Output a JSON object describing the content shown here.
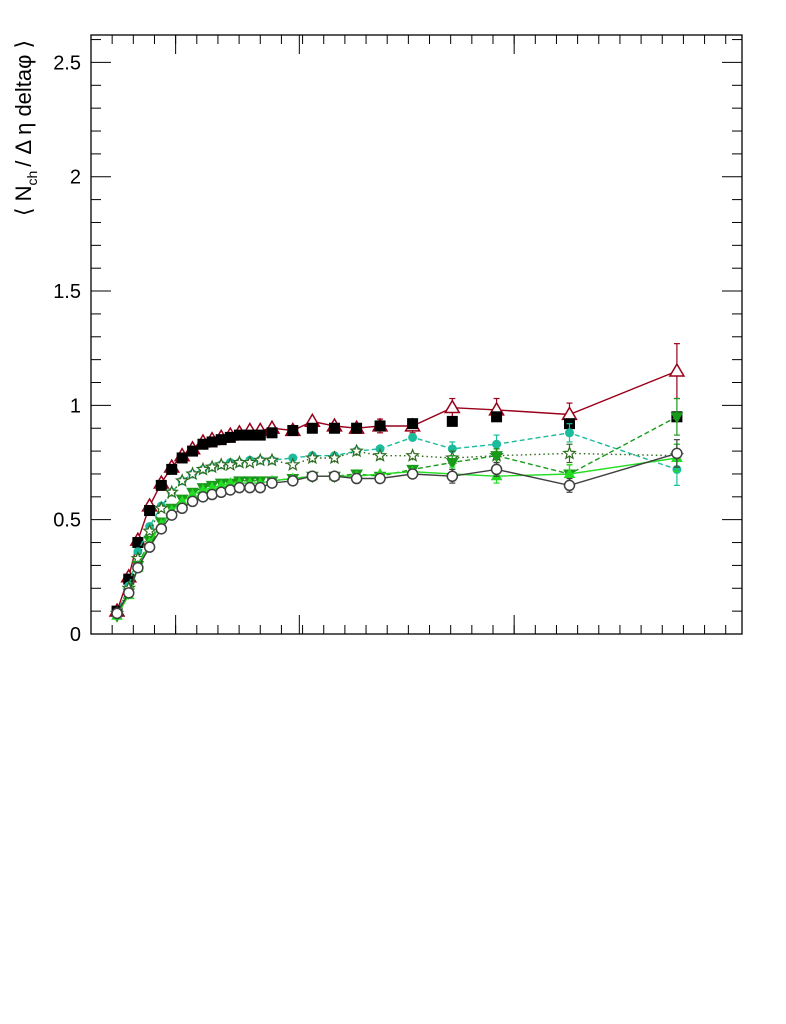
{
  "chart_data": {
    "type": "scatter",
    "ylabel_parts": {
      "open": "⟨ N",
      "sub": "ch",
      "rest": "/ Δ η deltaφ ⟩"
    },
    "ylim": [
      0,
      2.62
    ],
    "xlim": [
      0,
      100
    ],
    "y_ticks": [
      {
        "value": 0,
        "label": "0"
      },
      {
        "value": 0.5,
        "label": "0.5"
      },
      {
        "value": 1,
        "label": "1"
      },
      {
        "value": 1.5,
        "label": "1.5"
      },
      {
        "value": 2,
        "label": "2"
      },
      {
        "value": 2.5,
        "label": "2.5"
      }
    ],
    "x_major_ticks": [
      0,
      13,
      32,
      65,
      100
    ],
    "x_minor_step": 3.25,
    "y_minor_step": 0.1,
    "series": [
      {
        "marker": "open-triangle",
        "color": "#99001a",
        "line": "solid",
        "points": [
          [
            4,
            0.1
          ],
          [
            5.8,
            0.25
          ],
          [
            7.2,
            0.41
          ],
          [
            9,
            0.56
          ],
          [
            10.8,
            0.66
          ],
          [
            12.4,
            0.73
          ],
          [
            14,
            0.78
          ],
          [
            15.6,
            0.81
          ],
          [
            17.2,
            0.84
          ],
          [
            18.6,
            0.85
          ],
          [
            20,
            0.86
          ],
          [
            21.4,
            0.87
          ],
          [
            22.8,
            0.88
          ],
          [
            24.4,
            0.89
          ],
          [
            26,
            0.89
          ],
          [
            27.8,
            0.9
          ],
          [
            31,
            0.89
          ],
          [
            34,
            0.93
          ],
          [
            37.4,
            0.91
          ],
          [
            40.8,
            0.9
          ],
          [
            44.4,
            0.91
          ],
          [
            49.4,
            0.91
          ],
          [
            55.5,
            0.99
          ],
          [
            62.3,
            0.98
          ],
          [
            73.5,
            0.96
          ],
          [
            90,
            1.15
          ]
        ],
        "errors": [
          0.01,
          0.01,
          0.01,
          0.01,
          0.01,
          0.01,
          0.01,
          0.01,
          0.01,
          0.01,
          0.01,
          0.01,
          0.01,
          0.01,
          0.01,
          0.01,
          0.02,
          0.02,
          0.02,
          0.02,
          0.03,
          0.03,
          0.04,
          0.05,
          0.05,
          0.12
        ]
      },
      {
        "marker": "filled-square",
        "color": "#000000",
        "line": "none",
        "points": [
          [
            4,
            0.1
          ],
          [
            5.8,
            0.24
          ],
          [
            7.2,
            0.4
          ],
          [
            9,
            0.54
          ],
          [
            10.8,
            0.65
          ],
          [
            12.4,
            0.72
          ],
          [
            14,
            0.77
          ],
          [
            15.6,
            0.8
          ],
          [
            17.2,
            0.83
          ],
          [
            18.6,
            0.84
          ],
          [
            20,
            0.85
          ],
          [
            21.4,
            0.86
          ],
          [
            22.8,
            0.87
          ],
          [
            24.4,
            0.87
          ],
          [
            26,
            0.87
          ],
          [
            27.8,
            0.88
          ],
          [
            31,
            0.89
          ],
          [
            34,
            0.9
          ],
          [
            37.4,
            0.9
          ],
          [
            40.8,
            0.9
          ],
          [
            44.4,
            0.91
          ],
          [
            49.4,
            0.92
          ],
          [
            55.5,
            0.93
          ],
          [
            62.3,
            0.95
          ],
          [
            73.5,
            0.92
          ],
          [
            90,
            0.95
          ]
        ],
        "errors": [
          0.01,
          0.01,
          0.01,
          0.01,
          0.01,
          0.01,
          0.01,
          0.01,
          0.01,
          0.01,
          0.01,
          0.01,
          0.01,
          0.01,
          0.01,
          0.01,
          0.01,
          0.01,
          0.01,
          0.01,
          0.01,
          0.01,
          0.01,
          0.01,
          0.02,
          0.02
        ]
      },
      {
        "marker": "filled-circle",
        "color": "#1abc9c",
        "line": "dashed",
        "points": [
          [
            4,
            0.09
          ],
          [
            5.8,
            0.21
          ],
          [
            7.2,
            0.36
          ],
          [
            9,
            0.47
          ],
          [
            10.8,
            0.56
          ],
          [
            12.4,
            0.62
          ],
          [
            14,
            0.67
          ],
          [
            15.6,
            0.7
          ],
          [
            17.2,
            0.72
          ],
          [
            18.6,
            0.73
          ],
          [
            20,
            0.74
          ],
          [
            21.4,
            0.75
          ],
          [
            22.8,
            0.75
          ],
          [
            24.4,
            0.76
          ],
          [
            26,
            0.76
          ],
          [
            27.8,
            0.76
          ],
          [
            31,
            0.77
          ],
          [
            34,
            0.78
          ],
          [
            37.4,
            0.78
          ],
          [
            40.8,
            0.8
          ],
          [
            44.4,
            0.81
          ],
          [
            49.4,
            0.86
          ],
          [
            55.5,
            0.81
          ],
          [
            62.3,
            0.83
          ],
          [
            73.5,
            0.88
          ],
          [
            90,
            0.72
          ]
        ],
        "errors": [
          0.01,
          0.01,
          0.01,
          0.01,
          0.01,
          0.01,
          0.01,
          0.01,
          0.01,
          0.01,
          0.01,
          0.01,
          0.01,
          0.01,
          0.01,
          0.01,
          0.01,
          0.01,
          0.02,
          0.02,
          0.02,
          0.02,
          0.03,
          0.04,
          0.04,
          0.07
        ]
      },
      {
        "marker": "open-star",
        "color": "#2e6b1e",
        "line": "dotted",
        "points": [
          [
            4,
            0.09
          ],
          [
            5.8,
            0.2
          ],
          [
            7.2,
            0.33
          ],
          [
            9,
            0.45
          ],
          [
            10.8,
            0.55
          ],
          [
            12.4,
            0.62
          ],
          [
            14,
            0.67
          ],
          [
            15.6,
            0.7
          ],
          [
            17.2,
            0.72
          ],
          [
            18.6,
            0.73
          ],
          [
            20,
            0.74
          ],
          [
            21.4,
            0.74
          ],
          [
            22.8,
            0.75
          ],
          [
            24.4,
            0.75
          ],
          [
            26,
            0.76
          ],
          [
            27.8,
            0.76
          ],
          [
            31,
            0.74
          ],
          [
            34,
            0.77
          ],
          [
            37.4,
            0.77
          ],
          [
            40.8,
            0.8
          ],
          [
            44.4,
            0.78
          ],
          [
            49.4,
            0.78
          ],
          [
            55.5,
            0.77
          ],
          [
            62.3,
            0.78
          ],
          [
            73.5,
            0.79
          ],
          [
            90,
            0.78
          ]
        ],
        "errors": [
          0.01,
          0.01,
          0.01,
          0.01,
          0.01,
          0.01,
          0.01,
          0.01,
          0.01,
          0.01,
          0.01,
          0.01,
          0.01,
          0.01,
          0.01,
          0.01,
          0.01,
          0.02,
          0.02,
          0.02,
          0.02,
          0.02,
          0.03,
          0.03,
          0.04,
          0.05
        ]
      },
      {
        "marker": "filled-down-triangle",
        "color": "#1a9a1a",
        "line": "dashed",
        "points": [
          [
            4,
            0.08
          ],
          [
            5.8,
            0.18
          ],
          [
            7.2,
            0.3
          ],
          [
            9,
            0.41
          ],
          [
            10.8,
            0.49
          ],
          [
            12.4,
            0.55
          ],
          [
            14,
            0.59
          ],
          [
            15.6,
            0.62
          ],
          [
            17.2,
            0.64
          ],
          [
            18.6,
            0.65
          ],
          [
            20,
            0.66
          ],
          [
            21.4,
            0.66
          ],
          [
            22.8,
            0.67
          ],
          [
            24.4,
            0.67
          ],
          [
            26,
            0.67
          ],
          [
            27.8,
            0.67
          ],
          [
            31,
            0.68
          ],
          [
            34,
            0.69
          ],
          [
            37.4,
            0.69
          ],
          [
            40.8,
            0.7
          ],
          [
            44.4,
            0.69
          ],
          [
            49.4,
            0.72
          ],
          [
            55.5,
            0.75
          ],
          [
            62.3,
            0.78
          ],
          [
            73.5,
            0.7
          ],
          [
            90,
            0.95
          ]
        ],
        "errors": [
          0.01,
          0.01,
          0.01,
          0.01,
          0.01,
          0.01,
          0.01,
          0.01,
          0.01,
          0.01,
          0.01,
          0.01,
          0.01,
          0.01,
          0.01,
          0.01,
          0.01,
          0.01,
          0.02,
          0.02,
          0.02,
          0.02,
          0.03,
          0.03,
          0.04,
          0.08
        ]
      },
      {
        "marker": "filled-triangle",
        "color": "#22dd22",
        "line": "solid",
        "points": [
          [
            4,
            0.08
          ],
          [
            5.8,
            0.17
          ],
          [
            7.2,
            0.29
          ],
          [
            9,
            0.4
          ],
          [
            10.8,
            0.48
          ],
          [
            12.4,
            0.54
          ],
          [
            14,
            0.58
          ],
          [
            15.6,
            0.61
          ],
          [
            17.2,
            0.63
          ],
          [
            18.6,
            0.64
          ],
          [
            20,
            0.65
          ],
          [
            21.4,
            0.66
          ],
          [
            22.8,
            0.66
          ],
          [
            24.4,
            0.66
          ],
          [
            26,
            0.66
          ],
          [
            27.8,
            0.67
          ],
          [
            31,
            0.68
          ],
          [
            34,
            0.69
          ],
          [
            37.4,
            0.69
          ],
          [
            40.8,
            0.69
          ],
          [
            44.4,
            0.7
          ],
          [
            49.4,
            0.71
          ],
          [
            55.5,
            0.7
          ],
          [
            62.3,
            0.69
          ],
          [
            73.5,
            0.7
          ],
          [
            90,
            0.77
          ]
        ],
        "errors": [
          0.01,
          0.01,
          0.01,
          0.01,
          0.01,
          0.01,
          0.01,
          0.01,
          0.01,
          0.01,
          0.01,
          0.01,
          0.01,
          0.01,
          0.01,
          0.01,
          0.01,
          0.01,
          0.02,
          0.02,
          0.02,
          0.02,
          0.03,
          0.03,
          0.04,
          0.06
        ]
      },
      {
        "marker": "open-circle",
        "color": "#404040",
        "line": "solid",
        "points": [
          [
            4,
            0.09
          ],
          [
            5.8,
            0.18
          ],
          [
            7.2,
            0.29
          ],
          [
            9,
            0.38
          ],
          [
            10.8,
            0.46
          ],
          [
            12.4,
            0.52
          ],
          [
            14,
            0.55
          ],
          [
            15.6,
            0.58
          ],
          [
            17.2,
            0.6
          ],
          [
            18.6,
            0.61
          ],
          [
            20,
            0.62
          ],
          [
            21.4,
            0.63
          ],
          [
            22.8,
            0.64
          ],
          [
            24.4,
            0.64
          ],
          [
            26,
            0.64
          ],
          [
            27.8,
            0.66
          ],
          [
            31,
            0.67
          ],
          [
            34,
            0.69
          ],
          [
            37.4,
            0.69
          ],
          [
            40.8,
            0.68
          ],
          [
            44.4,
            0.68
          ],
          [
            49.4,
            0.7
          ],
          [
            55.5,
            0.69
          ],
          [
            62.3,
            0.72
          ],
          [
            73.5,
            0.65
          ],
          [
            90,
            0.79
          ]
        ],
        "errors": [
          0.01,
          0.01,
          0.01,
          0.01,
          0.01,
          0.01,
          0.01,
          0.01,
          0.01,
          0.01,
          0.01,
          0.01,
          0.01,
          0.01,
          0.01,
          0.01,
          0.01,
          0.01,
          0.02,
          0.02,
          0.02,
          0.02,
          0.03,
          0.03,
          0.03,
          0.06
        ]
      }
    ]
  }
}
